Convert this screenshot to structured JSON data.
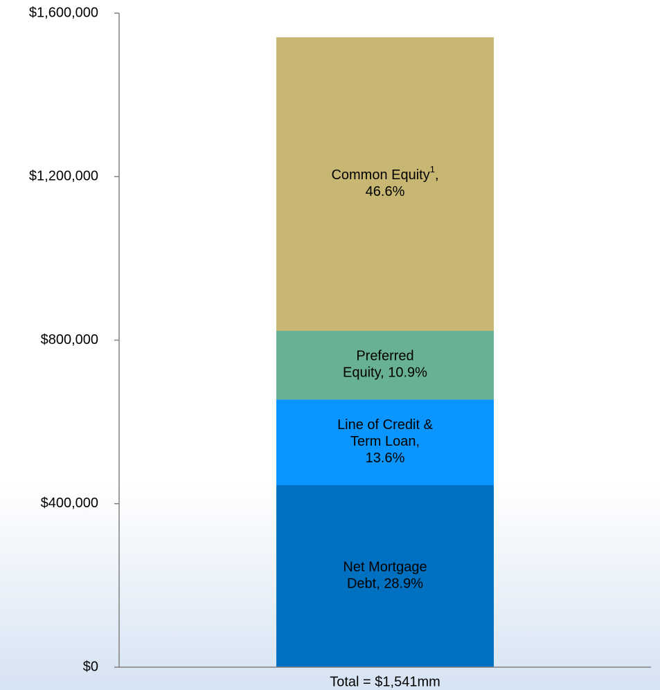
{
  "chart_data": {
    "type": "stacked_bar",
    "categories": [
      "Total = $1,541mm"
    ],
    "series": [
      {
        "name": "Net Mortgage Debt",
        "color": "#0070c0",
        "values": [
          445300
        ],
        "value_labels": [
          [
            [
              "Net Mortgage"
            ],
            [
              "Debt, 28.9%"
            ]
          ]
        ]
      },
      {
        "name": "Line of Credit & Term Loan",
        "color": "#0b95fe",
        "values": [
          209600
        ],
        "value_labels": [
          [
            [
              "Line of Credit &"
            ],
            [
              "Term Loan,"
            ],
            [
              "13.6%"
            ]
          ]
        ]
      },
      {
        "name": "Preferred Equity",
        "color": "#68b293",
        "values": [
          168000
        ],
        "value_labels": [
          [
            [
              "Preferred"
            ],
            [
              "Equity, 10.9%"
            ]
          ]
        ]
      },
      {
        "name": "Common Equity",
        "color": "#c8b773",
        "values": [
          718100
        ],
        "value_labels": [
          [
            [
              "Common Equity",
              "1",
              ","
            ],
            [
              "46.6%"
            ]
          ]
        ]
      }
    ],
    "ylim": [
      0,
      1600000
    ],
    "yticks": [
      {
        "value": 0,
        "label": "$0"
      },
      {
        "value": 400000,
        "label": "$400,000"
      },
      {
        "value": 800000,
        "label": "$800,000"
      },
      {
        "value": 1200000,
        "label": "$1,200,000"
      },
      {
        "value": 1600000,
        "label": "$1,600,000"
      }
    ]
  }
}
